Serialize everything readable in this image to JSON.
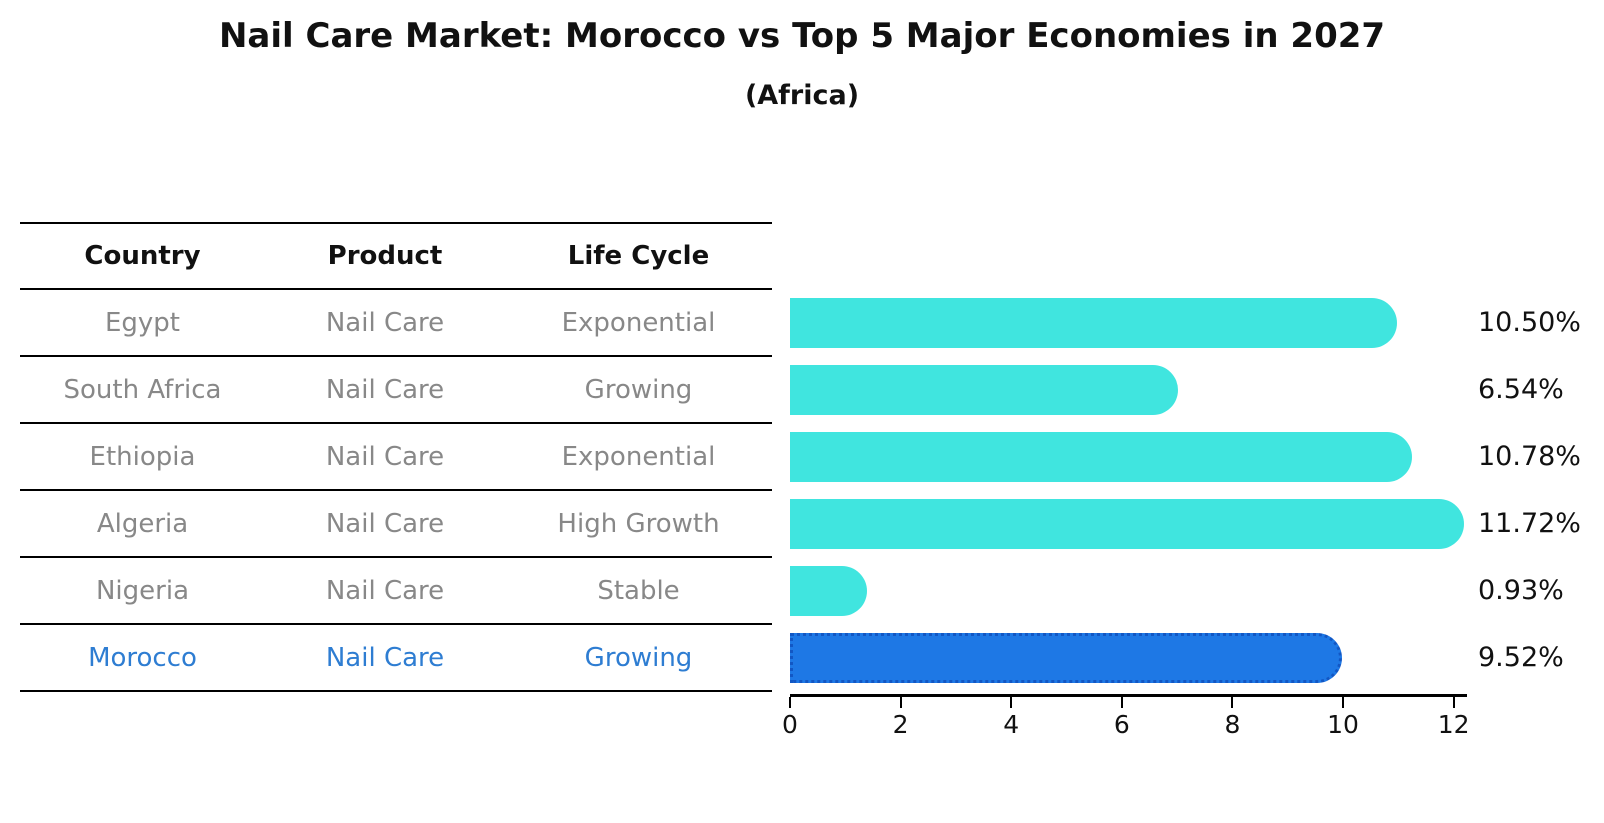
{
  "title": "Nail Care Market: Morocco vs Top 5 Major Economies in 2027",
  "subtitle": "(Africa)",
  "table": {
    "headers": [
      "Country",
      "Product",
      "Life Cycle"
    ],
    "rows": [
      {
        "country": "Egypt",
        "product": "Nail Care",
        "life_cycle": "Exponential",
        "highlight": false
      },
      {
        "country": "South Africa",
        "product": "Nail Care",
        "life_cycle": "Growing",
        "highlight": false
      },
      {
        "country": "Ethiopia",
        "product": "Nail Care",
        "life_cycle": "Exponential",
        "highlight": false
      },
      {
        "country": "Algeria",
        "product": "Nail Care",
        "life_cycle": "High Growth",
        "highlight": false
      },
      {
        "country": "Nigeria",
        "product": "Nail Care",
        "life_cycle": "Stable",
        "highlight": false
      },
      {
        "country": "Morocco",
        "product": "Nail Care",
        "life_cycle": "Growing",
        "highlight": true
      }
    ]
  },
  "chart_data": {
    "type": "bar",
    "orientation": "horizontal",
    "title": "Nail Care Market: Morocco vs Top 5 Major Economies in 2027 (Africa)",
    "categories": [
      "Egypt",
      "South Africa",
      "Ethiopia",
      "Algeria",
      "Nigeria",
      "Morocco"
    ],
    "values": [
      10.5,
      6.54,
      10.78,
      11.72,
      0.93,
      9.52
    ],
    "value_labels": [
      "10.50%",
      "6.54%",
      "10.78%",
      "11.72%",
      "0.93%",
      "9.52%"
    ],
    "x_ticks": [
      "0",
      "2",
      "4",
      "6",
      "8",
      "10",
      "12"
    ],
    "x_tick_values": [
      0,
      2,
      4,
      6,
      8,
      10,
      12
    ],
    "xlim": [
      0,
      12.2
    ],
    "grid": false,
    "legend": "none",
    "bar_color": "#40e5df",
    "highlight_color": "#1e78e5",
    "highlight_index": 5,
    "highlight_text_color": "#2e7dd2",
    "axis_color": "#000000"
  }
}
